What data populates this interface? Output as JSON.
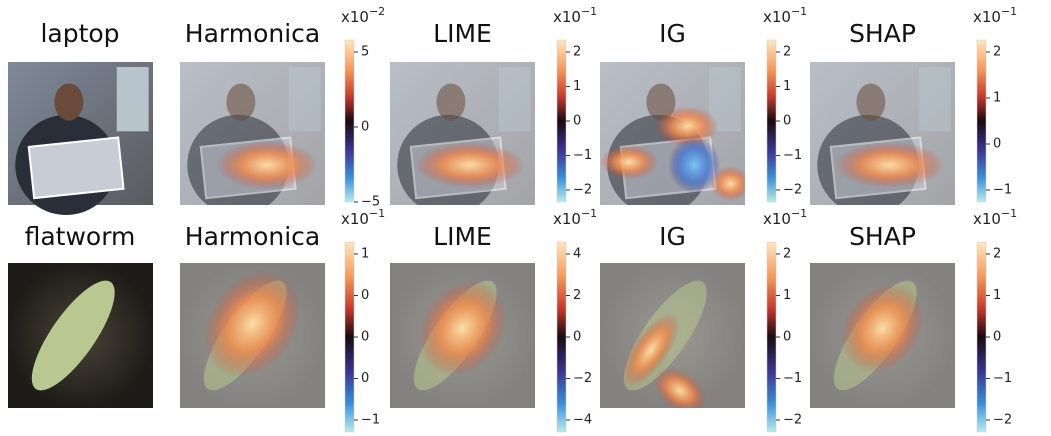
{
  "rows": [
    {
      "label": "laptop",
      "panels": [
        {
          "title": "Harmonica",
          "colorbar": {
            "scale": {
              "base": "x10",
              "exponent": "−2"
            },
            "ticks": [
              "5",
              "0",
              "−5"
            ]
          }
        },
        {
          "title": "LIME",
          "colorbar": {
            "scale": {
              "base": "x10",
              "exponent": "−1"
            },
            "ticks": [
              "2",
              "1",
              "0",
              "−1",
              "−2"
            ]
          }
        },
        {
          "title": "IG",
          "colorbar": {
            "scale": {
              "base": "x10",
              "exponent": "−1"
            },
            "ticks": [
              "2",
              "1",
              "0",
              "−1",
              "−2"
            ]
          }
        },
        {
          "title": "SHAP",
          "colorbar": {
            "scale": {
              "base": "x10",
              "exponent": "−1"
            },
            "ticks": [
              "2",
              "1",
              "0",
              "−1"
            ]
          }
        }
      ]
    },
    {
      "label": "flatworm",
      "panels": [
        {
          "title": "Harmonica",
          "colorbar": {
            "scale": {
              "base": "x10",
              "exponent": "−1"
            },
            "ticks": [
              "1",
              "0",
              "0",
              "0",
              "−1"
            ]
          }
        },
        {
          "title": "LIME",
          "colorbar": {
            "scale": {
              "base": "x10",
              "exponent": "−1"
            },
            "ticks": [
              "4",
              "2",
              "0",
              "−2",
              "−4"
            ]
          }
        },
        {
          "title": "IG",
          "colorbar": {
            "scale": {
              "base": "x10",
              "exponent": "−1"
            },
            "ticks": [
              "2",
              "1",
              "0",
              "−1",
              "−2"
            ]
          }
        },
        {
          "title": "SHAP",
          "colorbar": {
            "scale": {
              "base": "x10",
              "exponent": "−1"
            },
            "ticks": [
              "2",
              "1",
              "0",
              "−1",
              "−2"
            ]
          }
        }
      ]
    }
  ]
}
